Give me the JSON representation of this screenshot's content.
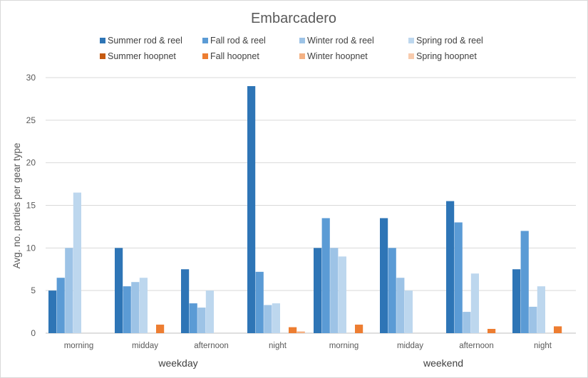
{
  "chart_data": {
    "type": "bar",
    "title": "Embarcadero",
    "ylabel": "Avg. no. parties per gear type",
    "xlabel": "",
    "ylim": [
      0,
      30
    ],
    "yticks": [
      0,
      5,
      10,
      15,
      20,
      25,
      30
    ],
    "categories": [
      "morning",
      "midday",
      "afternoon",
      "night",
      "morning",
      "midday",
      "afternoon",
      "night"
    ],
    "groups": [
      {
        "label": "weekday",
        "span": [
          0,
          3
        ]
      },
      {
        "label": "weekend",
        "span": [
          4,
          7
        ]
      }
    ],
    "legend_position": "top",
    "series": [
      {
        "name": "Summer rod & reel",
        "color": "#2e75b6",
        "values": [
          5,
          10,
          7.5,
          29,
          10,
          13.5,
          15.5,
          7.5
        ]
      },
      {
        "name": "Fall rod & reel",
        "color": "#5b9bd5",
        "values": [
          6.5,
          5.5,
          3.5,
          7.2,
          13.5,
          10,
          13,
          12
        ]
      },
      {
        "name": "Winter rod & reel",
        "color": "#9dc3e6",
        "values": [
          10,
          6,
          3,
          3.3,
          10,
          6.5,
          2.5,
          3.1
        ]
      },
      {
        "name": "Spring rod & reel",
        "color": "#bdd7ee",
        "values": [
          16.5,
          6.5,
          5,
          3.5,
          9,
          5,
          7,
          5.5
        ]
      },
      {
        "name": "Summer hoopnet",
        "color": "#c55a11",
        "values": [
          0,
          0,
          0,
          0,
          0,
          0,
          0,
          0
        ]
      },
      {
        "name": "Fall hoopnet",
        "color": "#ed7d31",
        "values": [
          0,
          1,
          0,
          0.7,
          1,
          0,
          0.5,
          0.8
        ]
      },
      {
        "name": "Winter hoopnet",
        "color": "#f4b183",
        "values": [
          0,
          0,
          0,
          0.2,
          0,
          0,
          0,
          0
        ]
      },
      {
        "name": "Spring hoopnet",
        "color": "#f8cbad",
        "values": [
          0,
          0,
          0,
          0,
          0,
          0,
          0,
          0
        ]
      }
    ]
  }
}
